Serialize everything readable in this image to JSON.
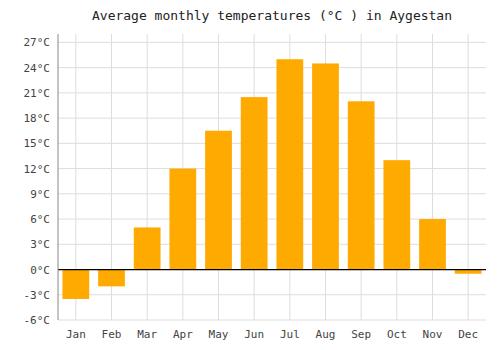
{
  "chart_data": {
    "type": "bar",
    "title": "Average monthly temperatures (°C ) in Aygestan",
    "categories": [
      "Jan",
      "Feb",
      "Mar",
      "Apr",
      "May",
      "Jun",
      "Jul",
      "Aug",
      "Sep",
      "Oct",
      "Nov",
      "Dec"
    ],
    "values": [
      -3.5,
      -2.0,
      5.0,
      12.0,
      16.5,
      20.5,
      25.0,
      24.5,
      20.0,
      13.0,
      6.0,
      -0.5
    ],
    "color": "#FFAA00",
    "ylim": [
      -6,
      28
    ],
    "yticks": [
      {
        "value": -6,
        "label": "-6°C"
      },
      {
        "value": -3,
        "label": "-3°C"
      },
      {
        "value": 0,
        "label": "0°C"
      },
      {
        "value": 3,
        "label": "3°C"
      },
      {
        "value": 6,
        "label": "6°C"
      },
      {
        "value": 9,
        "label": "9°C"
      },
      {
        "value": 12,
        "label": "12°C"
      },
      {
        "value": 15,
        "label": "15°C"
      },
      {
        "value": 18,
        "label": "18°C"
      },
      {
        "value": 21,
        "label": "21°C"
      },
      {
        "value": 24,
        "label": "24°C"
      },
      {
        "value": 27,
        "label": "27°C"
      }
    ],
    "grid": true
  }
}
